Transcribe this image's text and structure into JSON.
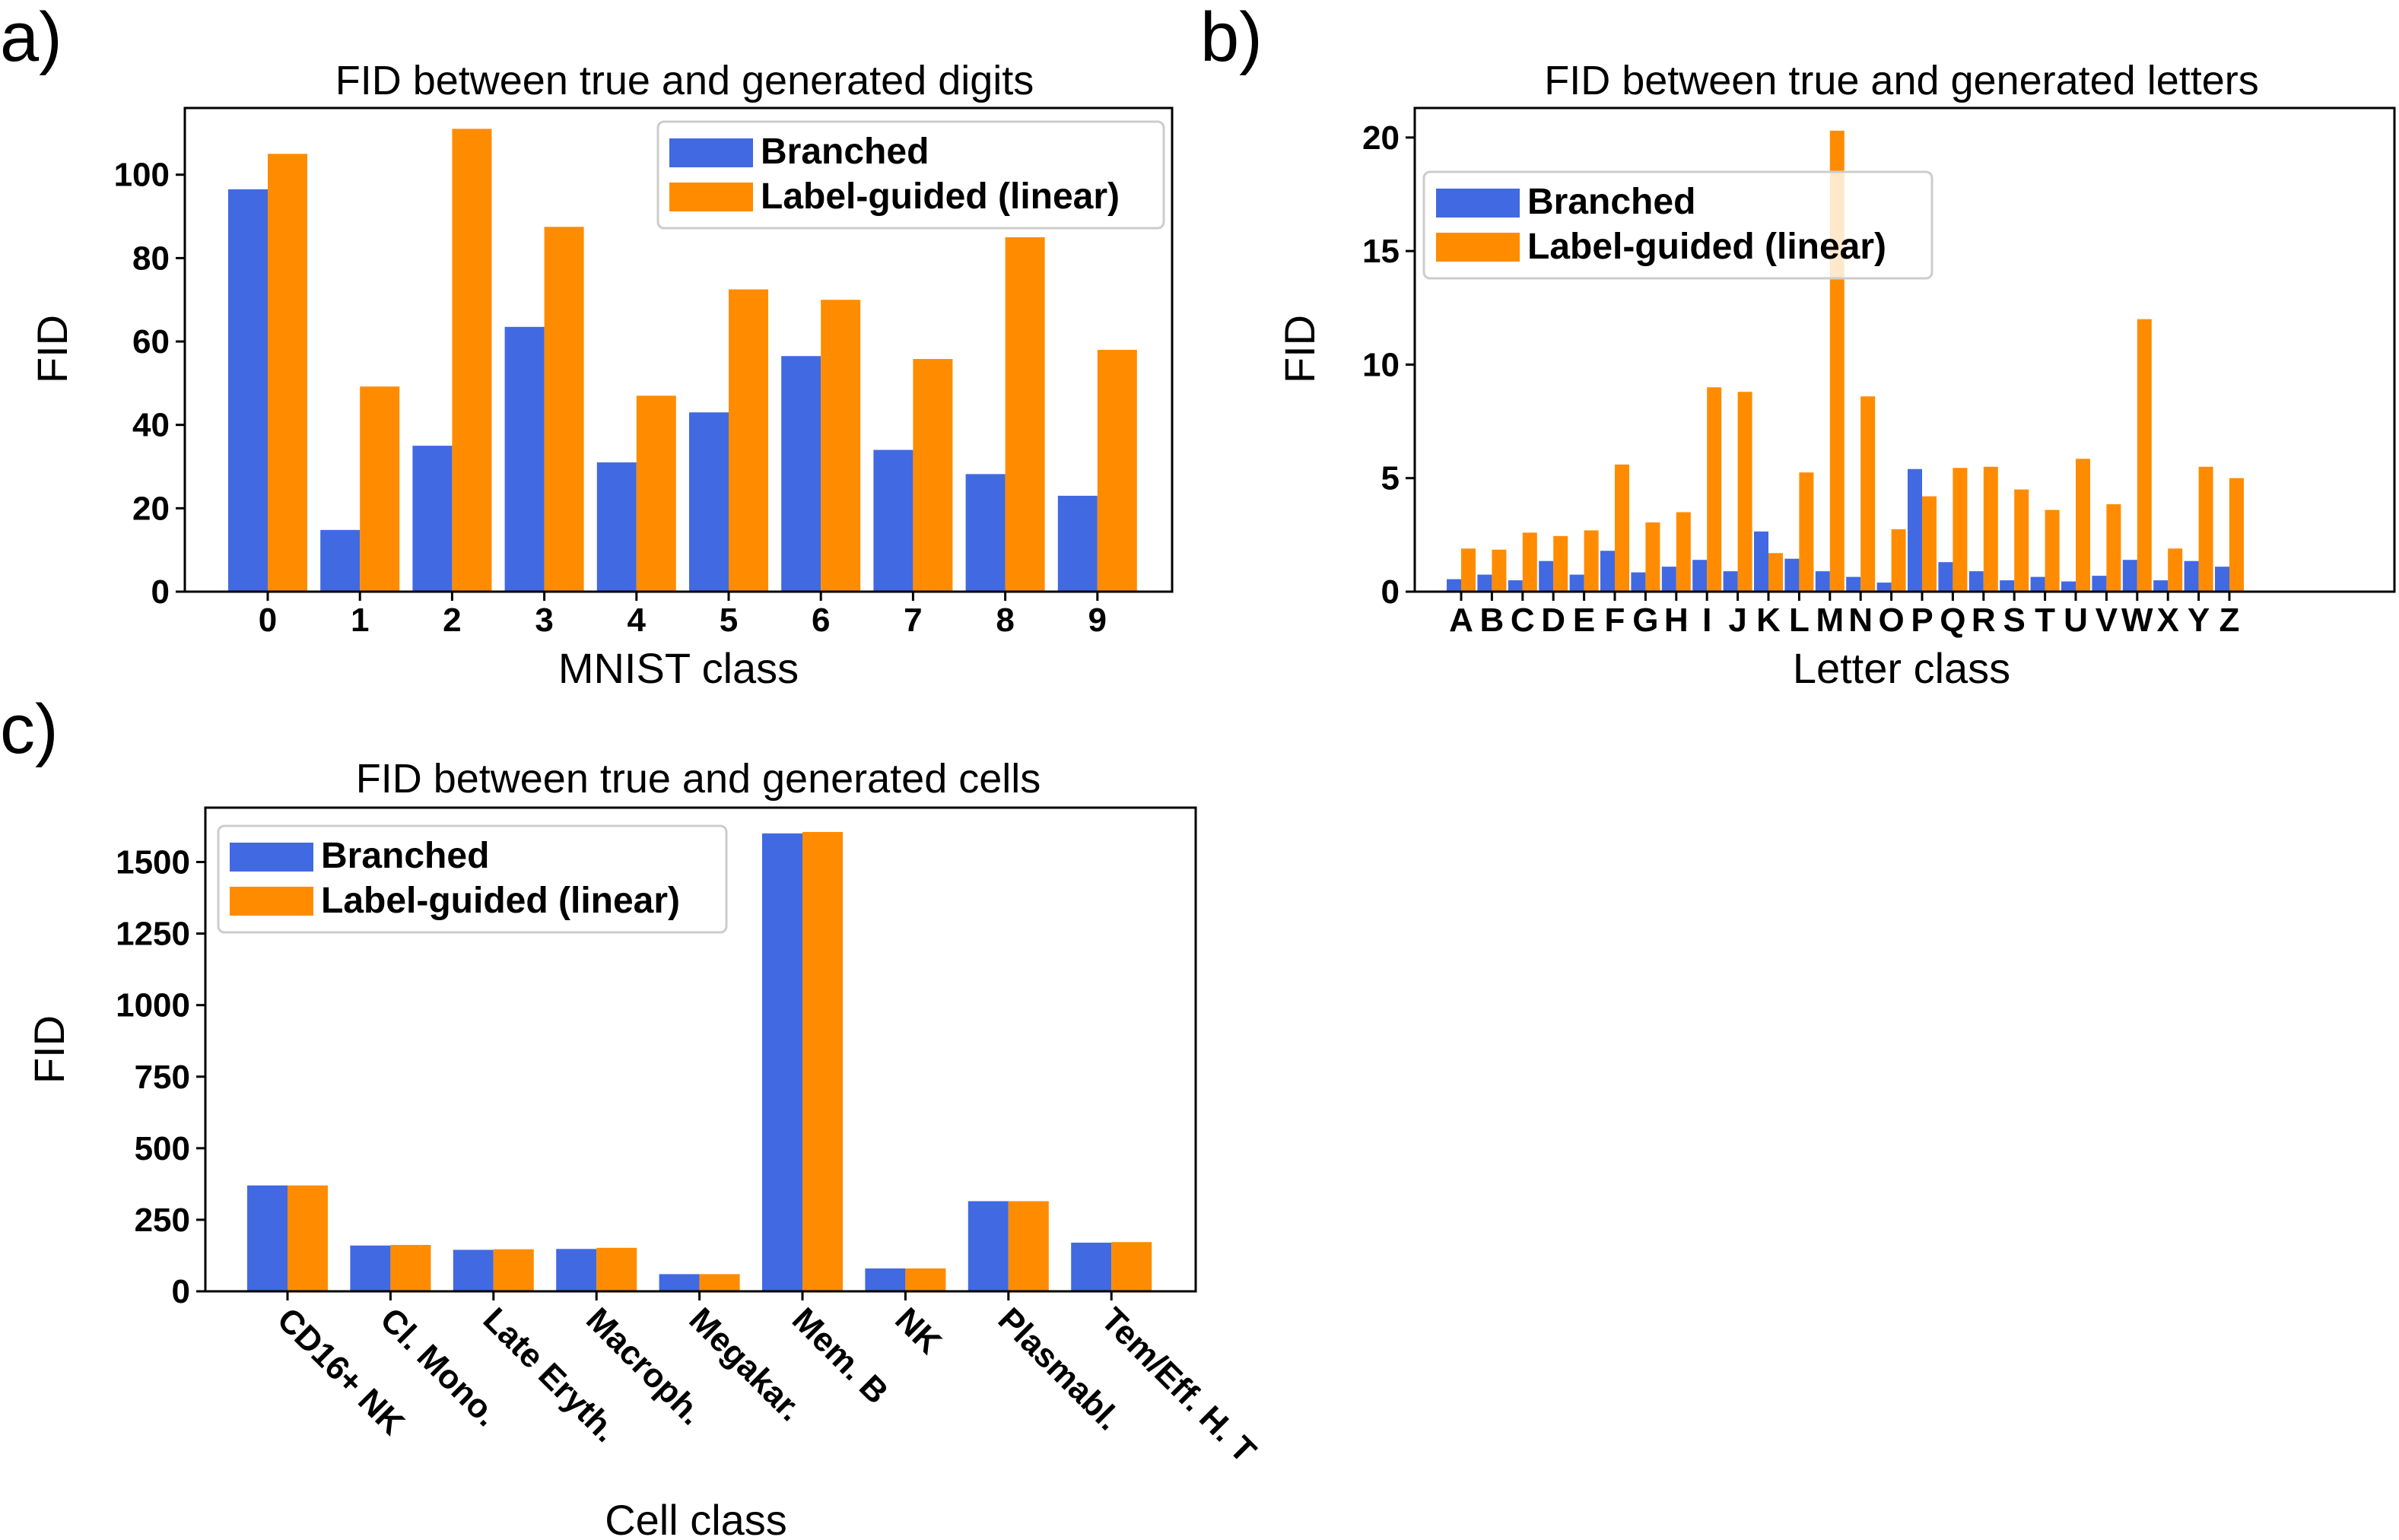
{
  "colors": {
    "branched": "#4169E1",
    "linear": "#FF8C00"
  },
  "legend": {
    "branched": "Branched",
    "linear": "Label-guided (linear)"
  },
  "chart_data": [
    {
      "panel": "a)",
      "type": "bar",
      "title": "FID between true and generated digits",
      "xlabel": "MNIST class",
      "ylabel": "FID",
      "ylim": [
        0,
        116
      ],
      "yticks": [
        0,
        20,
        40,
        60,
        80,
        100
      ],
      "legend_position": "top-right",
      "categories": [
        "0",
        "1",
        "2",
        "3",
        "4",
        "5",
        "6",
        "7",
        "8",
        "9"
      ],
      "series": [
        {
          "name": "Branched",
          "values": [
            96.5,
            14.8,
            35,
            63.5,
            31,
            43,
            56.5,
            34,
            28.2,
            23
          ]
        },
        {
          "name": "Label-guided (linear)",
          "values": [
            105,
            49.2,
            111,
            87.5,
            47,
            72.5,
            70,
            55.8,
            85,
            58
          ]
        }
      ]
    },
    {
      "panel": "b)",
      "type": "bar",
      "title": "FID between true and generated letters",
      "xlabel": "Letter class",
      "ylabel": "FID",
      "ylim": [
        0,
        21.3
      ],
      "yticks": [
        0,
        5,
        10,
        15,
        20
      ],
      "legend_position": "upper-left",
      "categories": [
        "A",
        "B",
        "C",
        "D",
        "E",
        "F",
        "G",
        "H",
        "I",
        "J",
        "K",
        "L",
        "M",
        "N",
        "O",
        "P",
        "Q",
        "R",
        "S",
        "T",
        "U",
        "V",
        "W",
        "X",
        "Y",
        "Z"
      ],
      "series": [
        {
          "name": "Branched",
          "values": [
            0.55,
            0.75,
            0.5,
            1.35,
            0.75,
            1.8,
            0.85,
            1.1,
            1.4,
            0.9,
            2.65,
            1.45,
            0.9,
            0.65,
            0.4,
            5.4,
            1.3,
            0.9,
            0.5,
            0.65,
            0.45,
            0.7,
            1.4,
            0.5,
            1.35,
            1.1
          ]
        },
        {
          "name": "Label-guided (linear)",
          "values": [
            1.9,
            1.85,
            2.6,
            2.45,
            2.7,
            5.6,
            3.05,
            3.5,
            9.0,
            8.8,
            1.7,
            5.25,
            20.3,
            8.6,
            2.75,
            4.2,
            5.45,
            5.5,
            4.5,
            3.6,
            5.85,
            3.85,
            12.0,
            1.9,
            5.5,
            5.0
          ]
        }
      ]
    },
    {
      "panel": "c)",
      "type": "bar",
      "title": "FID between true and generated cells",
      "xlabel": "Cell class",
      "ylabel": "FID",
      "ylim": [
        0,
        1690
      ],
      "yticks": [
        0,
        250,
        500,
        750,
        1000,
        1250,
        1500
      ],
      "legend_position": "upper-left",
      "categories": [
        "CD16+ NK",
        "Cl. Mono.",
        "Late Eryth.",
        "Macroph.",
        "Megakar.",
        "Mem. B",
        "NK",
        "Plasmabl.",
        "Tem/Eff. H. T"
      ],
      "series": [
        {
          "name": "Branched",
          "values": [
            370,
            160,
            145,
            148,
            60,
            1600,
            80,
            315,
            170
          ]
        },
        {
          "name": "Label-guided (linear)",
          "values": [
            370,
            162,
            147,
            152,
            60,
            1605,
            80,
            315,
            172
          ]
        }
      ]
    }
  ]
}
